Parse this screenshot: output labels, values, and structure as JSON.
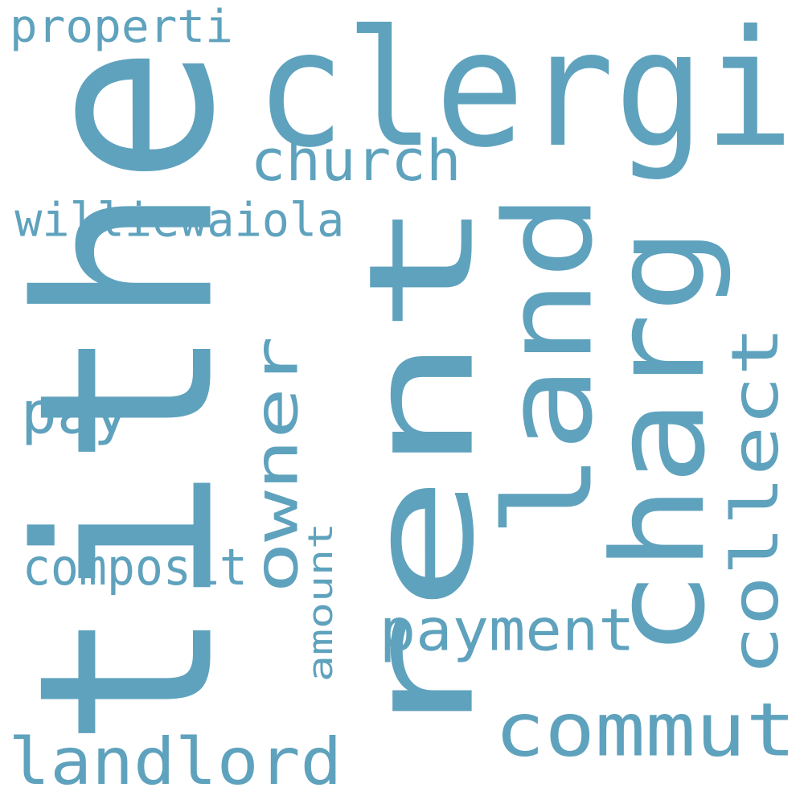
{
  "wordcloud": {
    "color": "#5fa2bd",
    "words": [
      {
        "text": "tithe",
        "rotation": "vertical"
      },
      {
        "text": "rent",
        "rotation": "vertical"
      },
      {
        "text": "clergi",
        "rotation": "horizontal"
      },
      {
        "text": "land",
        "rotation": "vertical"
      },
      {
        "text": "charg",
        "rotation": "vertical"
      },
      {
        "text": "landlord",
        "rotation": "horizontal"
      },
      {
        "text": "commut",
        "rotation": "horizontal"
      },
      {
        "text": "owner",
        "rotation": "vertical"
      },
      {
        "text": "collect",
        "rotation": "vertical"
      },
      {
        "text": "payment",
        "rotation": "horizontal"
      },
      {
        "text": "church",
        "rotation": "horizontal"
      },
      {
        "text": "pay",
        "rotation": "horizontal"
      },
      {
        "text": "composit",
        "rotation": "horizontal"
      },
      {
        "text": "williewaiola",
        "rotation": "horizontal"
      },
      {
        "text": "properti",
        "rotation": "horizontal"
      },
      {
        "text": "amount",
        "rotation": "vertical"
      }
    ]
  }
}
